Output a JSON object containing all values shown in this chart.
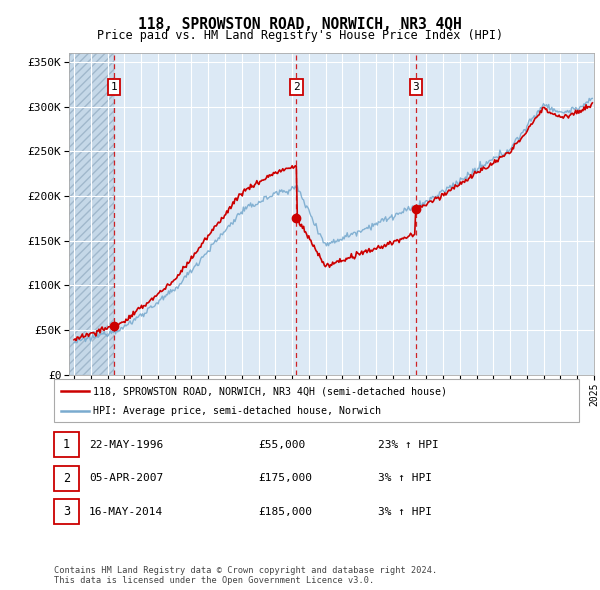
{
  "title": "118, SPROWSTON ROAD, NORWICH, NR3 4QH",
  "subtitle": "Price paid vs. HM Land Registry's House Price Index (HPI)",
  "sale_dates_float": [
    1996.386,
    2007.257,
    2014.37
  ],
  "sale_prices": [
    55000,
    175000,
    185000
  ],
  "sale_labels": [
    "1",
    "2",
    "3"
  ],
  "sale_info": [
    {
      "num": "1",
      "date": "22-MAY-1996",
      "price": "£55,000",
      "hpi": "23% ↑ HPI"
    },
    {
      "num": "2",
      "date": "05-APR-2007",
      "price": "£175,000",
      "hpi": "3% ↑ HPI"
    },
    {
      "num": "3",
      "date": "16-MAY-2014",
      "price": "£185,000",
      "hpi": "3% ↑ HPI"
    }
  ],
  "legend_line1": "118, SPROWSTON ROAD, NORWICH, NR3 4QH (semi-detached house)",
  "legend_line2": "HPI: Average price, semi-detached house, Norwich",
  "footer": "Contains HM Land Registry data © Crown copyright and database right 2024.\nThis data is licensed under the Open Government Licence v3.0.",
  "hpi_color": "#7aabcf",
  "price_color": "#cc0000",
  "bg_color": "#dce9f5",
  "grid_color": "#ffffff",
  "ylim": [
    0,
    360000
  ],
  "ytick_vals": [
    0,
    50000,
    100000,
    150000,
    200000,
    250000,
    300000,
    350000
  ],
  "ytick_labels": [
    "£0",
    "£50K",
    "£100K",
    "£150K",
    "£200K",
    "£250K",
    "£300K",
    "£350K"
  ],
  "xlim_start": 1993.7,
  "xlim_end": 2024.95,
  "hatch_end": 1996.386,
  "xtick_start": 1994,
  "xtick_end": 2025
}
